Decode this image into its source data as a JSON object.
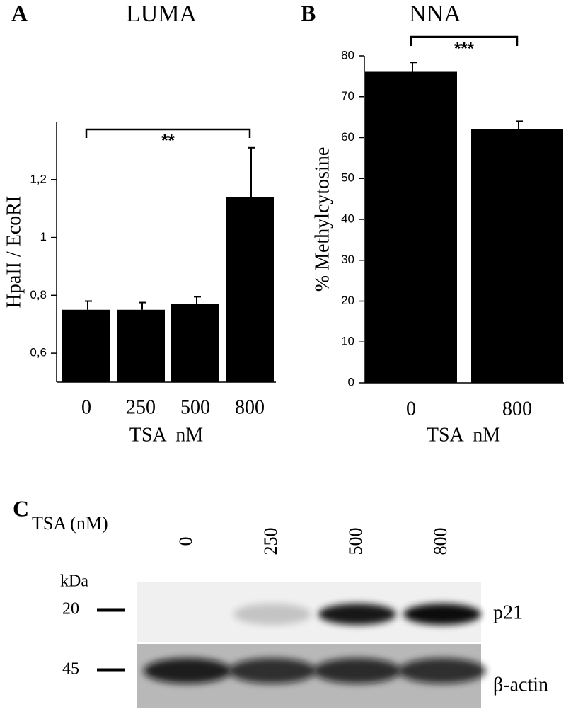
{
  "chart_data": [
    {
      "type": "bar",
      "panel": "A",
      "title": "LUMA",
      "ylabel": "HpaII / EcoRI",
      "xlabel": "TSA  nM",
      "categories": [
        "0",
        "250",
        "500",
        "800"
      ],
      "values": [
        0.75,
        0.75,
        0.77,
        1.14
      ],
      "errors": [
        0.03,
        0.025,
        0.025,
        0.17
      ],
      "color": "#000000",
      "ylim": [
        0.5,
        1.4
      ],
      "yticks": [
        {
          "value": 0.6,
          "label": "0,6"
        },
        {
          "value": 0.8,
          "label": "0,8"
        },
        1,
        {
          "value": 1.2,
          "label": "1,2"
        }
      ],
      "annotation": "**"
    },
    {
      "type": "bar",
      "panel": "B",
      "title": "NNA",
      "ylabel": "% Methylcytosine",
      "xlabel": "TSA  nM",
      "categories": [
        "0",
        "800"
      ],
      "values": [
        76.1,
        62
      ],
      "errors": [
        2.3,
        2
      ],
      "color": "#000000",
      "ylim": [
        0,
        80
      ],
      "yticks": [
        0,
        10,
        20,
        30,
        40,
        50,
        60,
        70,
        80
      ],
      "annotation": "***"
    }
  ],
  "blot": {
    "panel": "C",
    "condition_label": "TSA (nM)",
    "lanes": [
      "0",
      "250",
      "500",
      "800"
    ],
    "unit_label": "kDa",
    "markers": [
      {
        "size": "20",
        "protein": "p21"
      },
      {
        "size": "45",
        "protein": "β-actin"
      }
    ]
  }
}
